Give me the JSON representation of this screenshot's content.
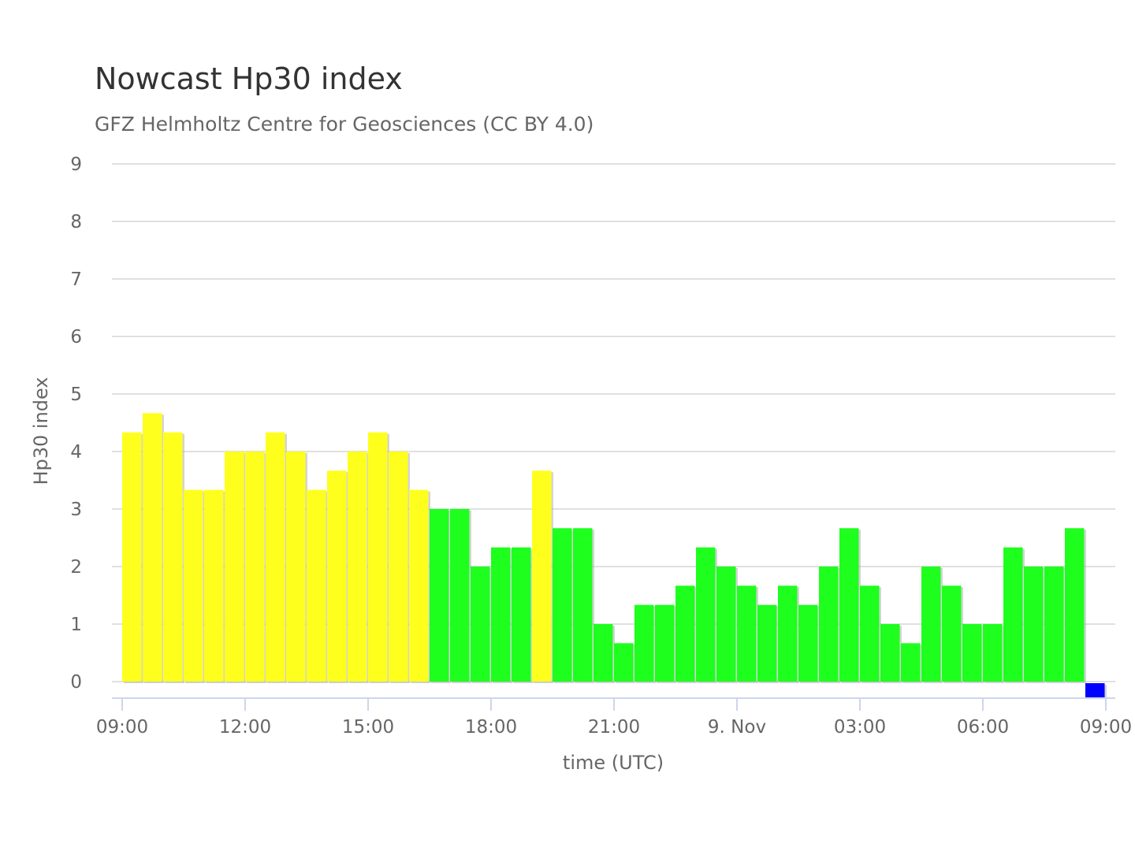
{
  "chart_data": {
    "type": "bar",
    "title": "Nowcast Hp30 index",
    "subtitle": "GFZ Helmholtz Centre for Geosciences (CC BY 4.0)",
    "xlabel": "time (UTC)",
    "ylabel": "Hp30 index",
    "ylim": [
      0,
      9
    ],
    "yticks": [
      "0",
      "1",
      "2",
      "3",
      "4",
      "5",
      "6",
      "7",
      "8",
      "9"
    ],
    "xticks": [
      "09:00",
      "12:00",
      "15:00",
      "18:00",
      "21:00",
      "9. Nov",
      "03:00",
      "06:00",
      "09:00"
    ],
    "x_start": "09:00",
    "bar_interval_hours": 0.5,
    "grid": true,
    "values": [
      4.333,
      4.667,
      4.333,
      3.333,
      3.333,
      4,
      4,
      4.333,
      4,
      3.333,
      3.667,
      4,
      4.333,
      4,
      3.333,
      3,
      3,
      2,
      2.333,
      2.333,
      3.667,
      2.667,
      2.667,
      1,
      0.667,
      1.333,
      1.333,
      1.667,
      2.333,
      2,
      1.667,
      1.333,
      1.667,
      1.333,
      2,
      2.667,
      1.667,
      1,
      0.667,
      2,
      1.667,
      1,
      1,
      2.333,
      2,
      2,
      2.667,
      -0.25
    ],
    "colors": {
      "yellow": "#ffff1e",
      "green": "#1eff1e",
      "blue": "#0000ff"
    },
    "bar_color_keys": [
      "yellow",
      "yellow",
      "yellow",
      "yellow",
      "yellow",
      "yellow",
      "yellow",
      "yellow",
      "yellow",
      "yellow",
      "yellow",
      "yellow",
      "yellow",
      "yellow",
      "yellow",
      "green",
      "green",
      "green",
      "green",
      "green",
      "yellow",
      "green",
      "green",
      "green",
      "green",
      "green",
      "green",
      "green",
      "green",
      "green",
      "green",
      "green",
      "green",
      "green",
      "green",
      "green",
      "green",
      "green",
      "green",
      "green",
      "green",
      "green",
      "green",
      "green",
      "green",
      "green",
      "green",
      "blue"
    ]
  }
}
